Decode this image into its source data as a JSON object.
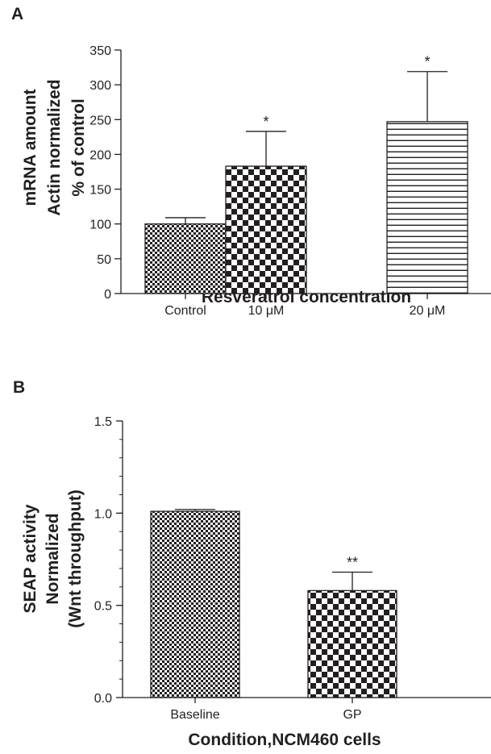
{
  "chart_data": [
    {
      "panel": "A",
      "type": "bar",
      "categories": [
        "Control",
        "10 μM",
        "20 μM"
      ],
      "values": [
        100,
        183,
        247
      ],
      "errors_upper": [
        109,
        233,
        319
      ],
      "annotations": [
        "",
        "*",
        "*"
      ],
      "ylabel_lines": [
        "mRNA amount",
        "Actin normalized",
        "% of control"
      ],
      "xlabel": "Resveratrol concentration",
      "ylim": [
        0,
        350
      ],
      "yticks": [
        "0",
        "50",
        "100",
        "150",
        "200",
        "250",
        "300",
        "350"
      ],
      "patterns": [
        "fine-checker",
        "coarse-checker",
        "horizontal-lines"
      ]
    },
    {
      "panel": "B",
      "type": "bar",
      "categories": [
        "Baseline",
        "GP"
      ],
      "values": [
        1.01,
        0.58
      ],
      "errors_upper": [
        1.02,
        0.68
      ],
      "annotations": [
        "",
        "**"
      ],
      "ylabel_lines": [
        "SEAP activity",
        "Normalized",
        "(Wnt throughput)"
      ],
      "xlabel": "Condition,NCM460 cells",
      "ylim": [
        0,
        1.5
      ],
      "yticks": [
        "0.0",
        "0.5",
        "1.0",
        "1.5"
      ],
      "patterns": [
        "fine-checker",
        "coarse-checker"
      ]
    }
  ],
  "colors": {
    "ink": "#231f20",
    "background": "#ffffff"
  }
}
